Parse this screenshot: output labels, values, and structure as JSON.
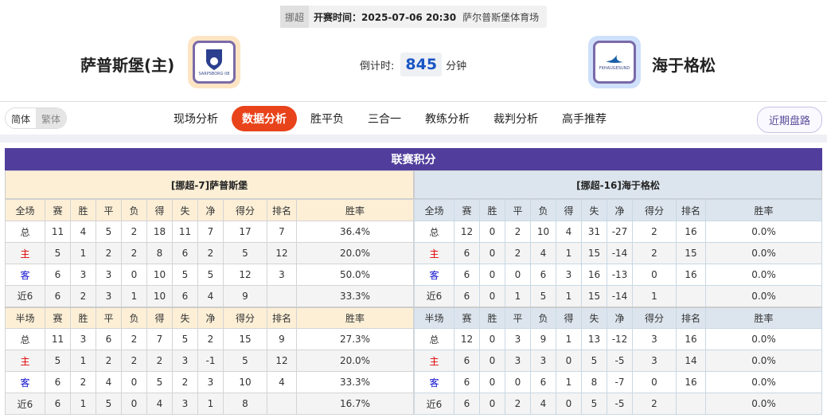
{
  "match": {
    "league": "挪超",
    "kickoff": "开赛时间：2025-07-06 20:30",
    "venue": "萨尔普斯堡体育场",
    "home": "萨普斯堡(主)",
    "away": "海于格松",
    "home_logo_text": "SARPSBORG 08",
    "away_logo_text": "FKHAUGESUND",
    "countdown_label": "倒计时:",
    "countdown_value": "845",
    "countdown_unit": "分钟"
  },
  "lang": {
    "simplified": "简体",
    "traditional": "繁体"
  },
  "tabs": [
    "现场分析",
    "数据分析",
    "胜平负",
    "三合一",
    "教练分析",
    "裁判分析",
    "高手推荐"
  ],
  "active_tab": "数据分析",
  "recent_button": "近期盘路",
  "colors": {
    "accent": "#e8431a",
    "title_bar": "#513e9c",
    "home_header": "#fcefd6",
    "away_header": "#dce5ee"
  },
  "section_title": "联赛积分",
  "home_table": {
    "title": "[挪超-7]萨普斯堡",
    "full_header": [
      "全场",
      "赛",
      "胜",
      "平",
      "负",
      "得",
      "失",
      "净",
      "得分",
      "排名",
      "胜率"
    ],
    "full_rows": [
      [
        "总",
        "11",
        "4",
        "5",
        "2",
        "18",
        "11",
        "7",
        "17",
        "7",
        "36.4%"
      ],
      [
        "主",
        "5",
        "1",
        "2",
        "2",
        "8",
        "6",
        "2",
        "5",
        "12",
        "20.0%"
      ],
      [
        "客",
        "6",
        "3",
        "3",
        "0",
        "10",
        "5",
        "5",
        "12",
        "3",
        "50.0%"
      ],
      [
        "近6",
        "6",
        "2",
        "3",
        "1",
        "10",
        "6",
        "4",
        "9",
        "",
        "33.3%"
      ]
    ],
    "half_header": [
      "半场",
      "赛",
      "胜",
      "平",
      "负",
      "得",
      "失",
      "净",
      "得分",
      "排名",
      "胜率"
    ],
    "half_rows": [
      [
        "总",
        "11",
        "3",
        "6",
        "2",
        "7",
        "5",
        "2",
        "15",
        "9",
        "27.3%"
      ],
      [
        "主",
        "5",
        "1",
        "2",
        "2",
        "2",
        "3",
        "-1",
        "5",
        "12",
        "20.0%"
      ],
      [
        "客",
        "6",
        "2",
        "4",
        "0",
        "5",
        "2",
        "3",
        "10",
        "4",
        "33.3%"
      ],
      [
        "近6",
        "6",
        "1",
        "5",
        "0",
        "4",
        "3",
        "1",
        "8",
        "",
        "16.7%"
      ]
    ]
  },
  "away_table": {
    "title": "[挪超-16]海于格松",
    "full_header": [
      "全场",
      "赛",
      "胜",
      "平",
      "负",
      "得",
      "失",
      "净",
      "得分",
      "排名",
      "胜率"
    ],
    "full_rows": [
      [
        "总",
        "12",
        "0",
        "2",
        "10",
        "4",
        "31",
        "-27",
        "2",
        "16",
        "0.0%"
      ],
      [
        "主",
        "6",
        "0",
        "2",
        "4",
        "1",
        "15",
        "-14",
        "2",
        "15",
        "0.0%"
      ],
      [
        "客",
        "6",
        "0",
        "0",
        "6",
        "3",
        "16",
        "-13",
        "0",
        "16",
        "0.0%"
      ],
      [
        "近6",
        "6",
        "0",
        "1",
        "5",
        "1",
        "15",
        "-14",
        "1",
        "",
        "0.0%"
      ]
    ],
    "half_header": [
      "半场",
      "赛",
      "胜",
      "平",
      "负",
      "得",
      "失",
      "净",
      "得分",
      "排名",
      "胜率"
    ],
    "half_rows": [
      [
        "总",
        "12",
        "0",
        "3",
        "9",
        "1",
        "13",
        "-12",
        "3",
        "16",
        "0.0%"
      ],
      [
        "主",
        "6",
        "0",
        "3",
        "3",
        "0",
        "5",
        "-5",
        "3",
        "14",
        "0.0%"
      ],
      [
        "客",
        "6",
        "0",
        "0",
        "6",
        "1",
        "8",
        "-7",
        "0",
        "16",
        "0.0%"
      ],
      [
        "近6",
        "6",
        "0",
        "2",
        "4",
        "0",
        "5",
        "-5",
        "2",
        "",
        "0.0%"
      ]
    ]
  }
}
